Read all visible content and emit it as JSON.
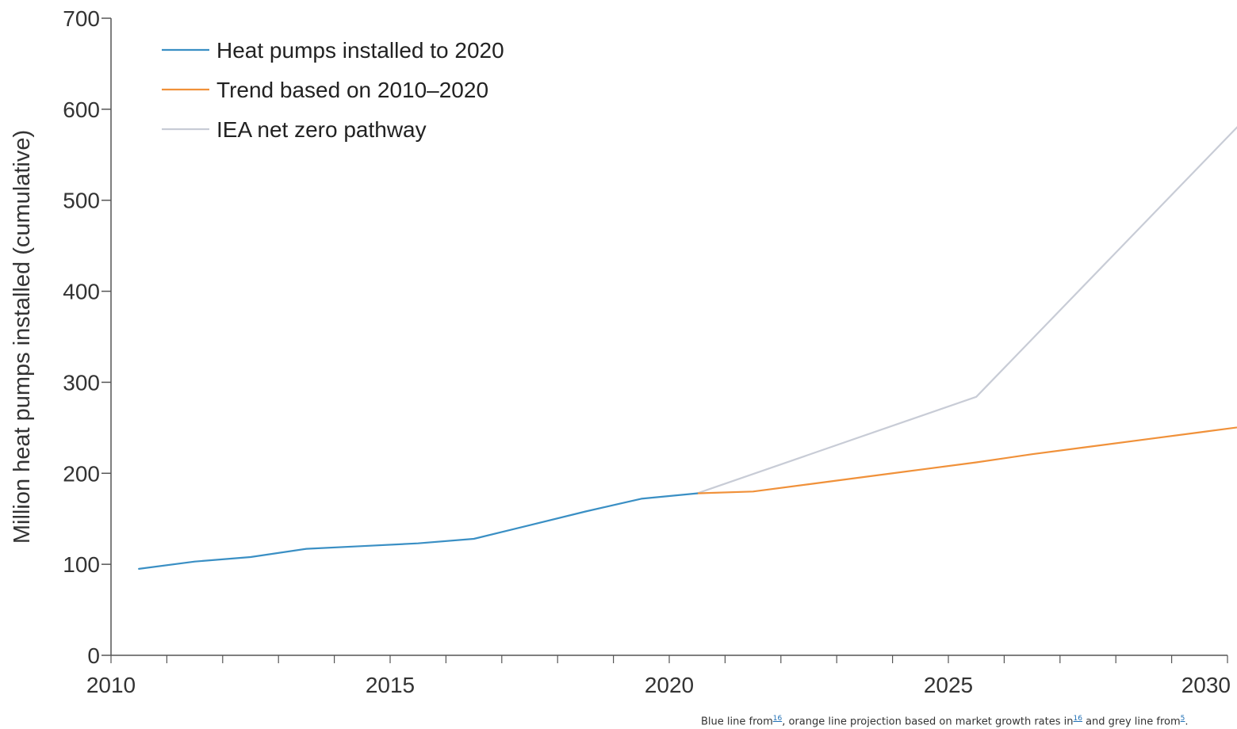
{
  "chart_data": {
    "type": "line",
    "title": "",
    "xlabel": "",
    "ylabel": "Million heat pumps installed (cumulative)",
    "xlim": [
      2010,
      2030
    ],
    "ylim": [
      0,
      700
    ],
    "x_ticks": [
      "2010",
      "2015",
      "2020",
      "2025",
      "2030"
    ],
    "y_ticks": [
      "0",
      "100",
      "200",
      "300",
      "400",
      "500",
      "600",
      "700"
    ],
    "grid": false,
    "legend_position": "top-left",
    "series": [
      {
        "name": "Heat pumps installed to 2020",
        "color": "#3a8fc4",
        "x": [
          2010.5,
          2011.5,
          2012.5,
          2013.5,
          2014.5,
          2015.5,
          2016.5,
          2017.5,
          2018.5,
          2019.5,
          2020.5
        ],
        "y": [
          95,
          103,
          108,
          117,
          120,
          123,
          128,
          143,
          158,
          172,
          178
        ]
      },
      {
        "name": "Trend based on 2010–2020",
        "color": "#f0913a",
        "x": [
          2020.5,
          2021.5,
          2022.5,
          2023.5,
          2024.5,
          2025.5,
          2026.5,
          2027.5,
          2028.5,
          2029.5,
          2030.5
        ],
        "y": [
          178,
          180,
          188,
          196,
          204,
          212,
          221,
          229,
          237,
          245,
          253
        ]
      },
      {
        "name": "IEA net zero pathway",
        "color": "#c8ccd6",
        "x": [
          2020.5,
          2025.5,
          2030.5
        ],
        "y": [
          178,
          284,
          601
        ]
      }
    ]
  },
  "footnote": {
    "part1": "Blue line from",
    "ref1": "16",
    "part2": ", orange line projection based on market growth rates in",
    "ref2": "16",
    "part3": " and grey line from",
    "ref3": "5",
    "part4": "."
  }
}
